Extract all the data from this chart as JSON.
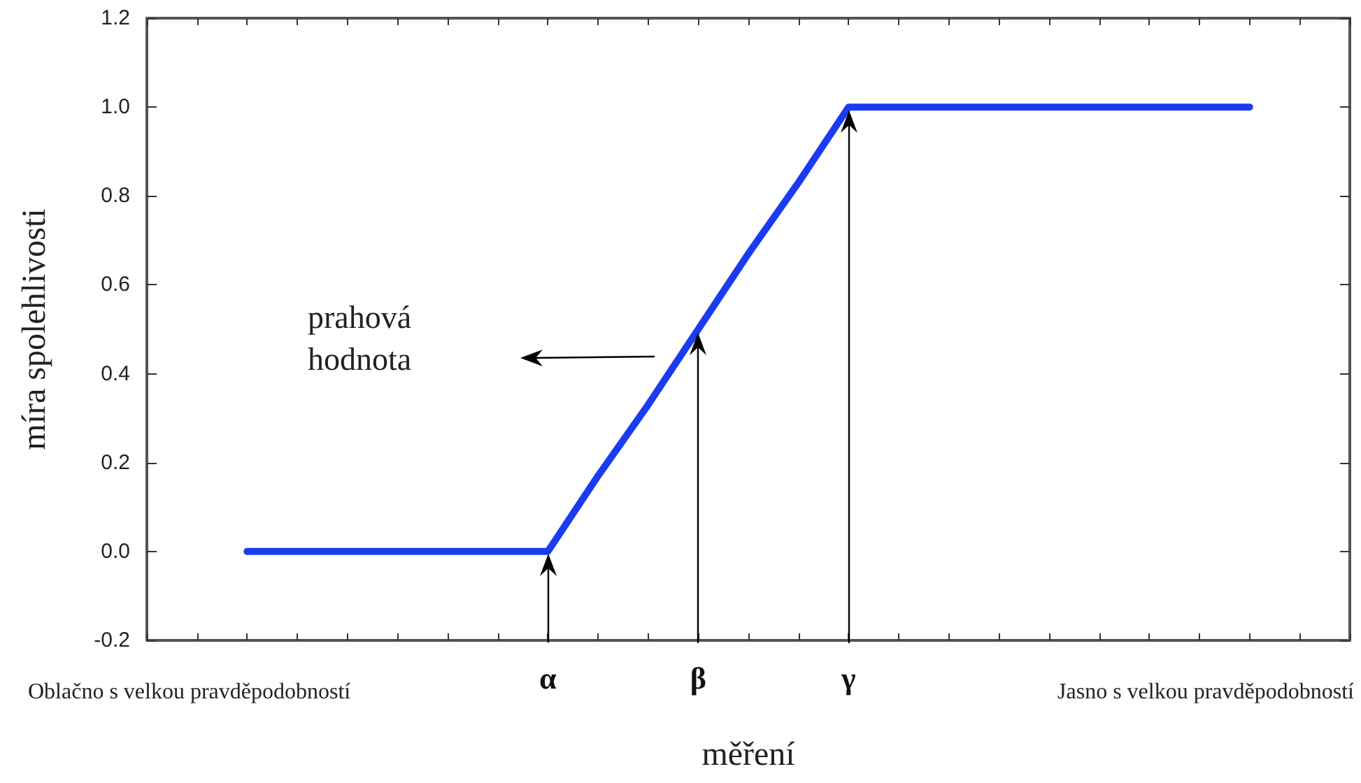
{
  "chart_data": {
    "type": "line",
    "xlabel": "měření",
    "ylabel": "míra spolehlivosti",
    "categories": [
      null,
      null,
      null,
      null,
      null,
      null,
      null,
      null,
      "α",
      null,
      null,
      "β",
      null,
      null,
      "γ",
      null,
      null,
      null,
      null,
      null,
      null,
      null,
      null,
      null,
      null
    ],
    "series": [
      {
        "color": "#1a3cf0",
        "values": [
          null,
          null,
          0,
          0,
          0,
          0,
          0,
          0,
          0,
          0.17,
          0.33,
          0.5,
          0.67,
          0.83,
          1,
          1,
          1,
          1,
          1,
          1,
          1,
          1,
          1,
          null,
          null
        ]
      }
    ],
    "ylim": [
      -0.2,
      1.2
    ],
    "yticks": [
      {
        "value": -0.2,
        "label": "-0.2"
      },
      {
        "value": 0,
        "label": "0.0"
      },
      {
        "value": 0.2,
        "label": "0.2"
      },
      {
        "value": 0.4,
        "label": "0.4"
      },
      {
        "value": 0.6,
        "label": "0.6"
      },
      {
        "value": 0.8,
        "label": "0.8"
      },
      {
        "value": 1,
        "label": "1.0"
      },
      {
        "value": 1.2,
        "label": "1.2"
      }
    ],
    "grid": false,
    "marker": "none",
    "line_style": "solid",
    "annotations": [
      "prahová hodnota",
      "Oblačno s velkou pravděpodobností",
      "Jasno s velkou pravděpodobností"
    ]
  }
}
